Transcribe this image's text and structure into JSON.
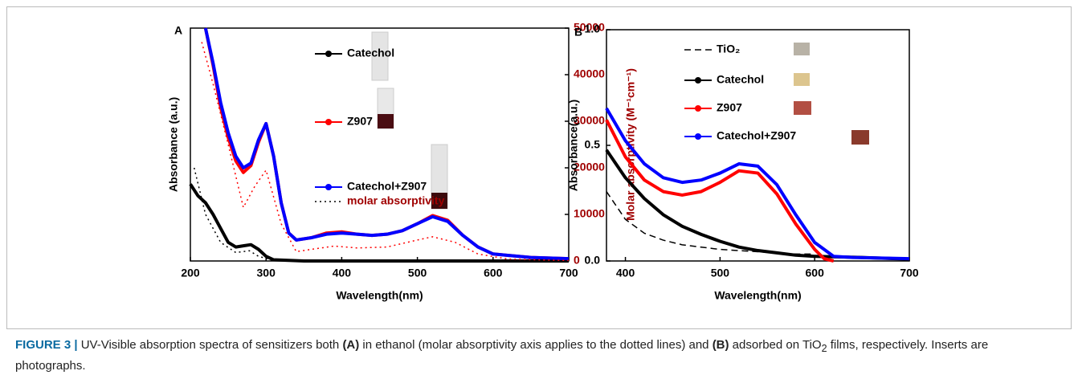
{
  "chart_data": [
    {
      "type": "line",
      "panel": "A",
      "xlabel": "Wavelength(nm)",
      "ylabel": "Absorbance (a.u.)",
      "y2label": "Molar absorptivity (M⁻¹cm⁻¹)",
      "y2color": "#a00000",
      "xlim": [
        200,
        700
      ],
      "xticks": [
        200,
        300,
        400,
        500,
        600,
        700
      ],
      "ylim": [
        0,
        1
      ],
      "y2lim": [
        0,
        50000
      ],
      "y2ticks": [
        0,
        10000,
        20000,
        30000,
        40000,
        50000
      ],
      "series": [
        {
          "name": "Catechol",
          "color": "#000000",
          "x": [
            200,
            210,
            220,
            230,
            240,
            250,
            260,
            270,
            280,
            290,
            300,
            310,
            350,
            700
          ],
          "values": [
            0.33,
            0.28,
            0.25,
            0.2,
            0.14,
            0.08,
            0.06,
            0.065,
            0.07,
            0.05,
            0.02,
            0.005,
            0,
            0
          ]
        },
        {
          "name": "Z907",
          "color": "#ff0000",
          "x": [
            220,
            230,
            240,
            250,
            260,
            270,
            280,
            290,
            300,
            310,
            320,
            330,
            340,
            360,
            380,
            400,
            420,
            440,
            460,
            480,
            500,
            520,
            540,
            560,
            580,
            600,
            650,
            700
          ],
          "values": [
            1.0,
            0.84,
            0.66,
            0.53,
            0.43,
            0.38,
            0.41,
            0.51,
            0.59,
            0.45,
            0.25,
            0.12,
            0.09,
            0.1,
            0.12,
            0.125,
            0.115,
            0.11,
            0.115,
            0.13,
            0.16,
            0.195,
            0.175,
            0.11,
            0.06,
            0.03,
            0.015,
            0.01
          ]
        },
        {
          "name": "Catechol+Z907",
          "color": "#0000ff",
          "x": [
            220,
            230,
            240,
            250,
            260,
            270,
            280,
            290,
            300,
            310,
            320,
            330,
            340,
            360,
            380,
            400,
            420,
            440,
            460,
            480,
            500,
            520,
            540,
            560,
            580,
            600,
            650,
            700
          ],
          "values": [
            1.0,
            0.85,
            0.68,
            0.55,
            0.45,
            0.4,
            0.42,
            0.52,
            0.59,
            0.45,
            0.25,
            0.12,
            0.09,
            0.1,
            0.115,
            0.12,
            0.115,
            0.11,
            0.115,
            0.13,
            0.16,
            0.19,
            0.17,
            0.11,
            0.06,
            0.03,
            0.015,
            0.01
          ]
        },
        {
          "name": "molar absorptivity",
          "color": "#000000",
          "dash": "dotted",
          "axis": "y2",
          "x": [
            205,
            220,
            240,
            260,
            278,
            290,
            310,
            350,
            700
          ],
          "values": [
            20000,
            10000,
            4000,
            1800,
            2200,
            1000,
            100,
            0,
            0
          ]
        },
        {
          "color": "#ff0000",
          "dash": "dotted",
          "axis": "y2",
          "x": [
            215,
            230,
            250,
            270,
            285,
            300,
            320,
            340,
            360,
            390,
            420,
            460,
            500,
            520,
            550,
            580,
            620,
            700
          ],
          "values": [
            47000,
            38000,
            25000,
            11500,
            16000,
            19500,
            8000,
            2000,
            2500,
            3200,
            2800,
            3000,
            4500,
            5200,
            4000,
            1500,
            400,
            100
          ]
        }
      ]
    },
    {
      "type": "line",
      "panel": "B",
      "xlabel": "Wavelength(nm)",
      "ylabel": "Absorbance(a.u.)",
      "xlim": [
        380,
        700
      ],
      "xticks": [
        400,
        500,
        600,
        700
      ],
      "ylim": [
        0,
        1
      ],
      "yticks": [
        {
          "value": 0,
          "label": "0.0"
        },
        0.5,
        {
          "value": 1,
          "label": "1.0"
        }
      ],
      "series": [
        {
          "name": "TiO₂",
          "color": "#000000",
          "dash": "dashed",
          "x": [
            380,
            400,
            420,
            440,
            460,
            480,
            500,
            520,
            540,
            560,
            580,
            600
          ],
          "values": [
            0.3,
            0.18,
            0.12,
            0.09,
            0.07,
            0.06,
            0.05,
            0.045,
            0.04,
            0.035,
            0.03,
            0.03
          ]
        },
        {
          "name": "Catechol",
          "color": "#000000",
          "x": [
            380,
            400,
            420,
            440,
            460,
            480,
            500,
            520,
            540,
            560,
            580,
            600,
            650,
            700
          ],
          "values": [
            0.48,
            0.36,
            0.27,
            0.2,
            0.15,
            0.115,
            0.085,
            0.06,
            0.045,
            0.035,
            0.025,
            0.02,
            0.015,
            0.008
          ]
        },
        {
          "name": "Z907",
          "color": "#ff0000",
          "x": [
            380,
            400,
            420,
            440,
            460,
            480,
            500,
            520,
            540,
            560,
            580,
            600,
            610,
            620
          ],
          "values": [
            0.61,
            0.45,
            0.35,
            0.3,
            0.285,
            0.3,
            0.34,
            0.39,
            0.38,
            0.29,
            0.16,
            0.05,
            0.01,
            0
          ]
        },
        {
          "name": "Catechol+Z907",
          "color": "#0000ff",
          "x": [
            380,
            400,
            420,
            440,
            460,
            480,
            500,
            520,
            540,
            560,
            580,
            600,
            620,
            640,
            700
          ],
          "values": [
            0.66,
            0.52,
            0.42,
            0.36,
            0.34,
            0.35,
            0.38,
            0.42,
            0.41,
            0.33,
            0.2,
            0.08,
            0.02,
            0.015,
            0.01
          ]
        }
      ]
    }
  ],
  "caption": {
    "parts": [
      "FIGURE 3 |",
      " UV-Visible absorption spectra of sensitizers both ",
      "(A)",
      " in ethanol (molar absorptivity axis applies to the dotted lines) and ",
      "(B)",
      " adsorbed on TiO",
      "2",
      " films, respectively. Inserts are photographs."
    ]
  }
}
